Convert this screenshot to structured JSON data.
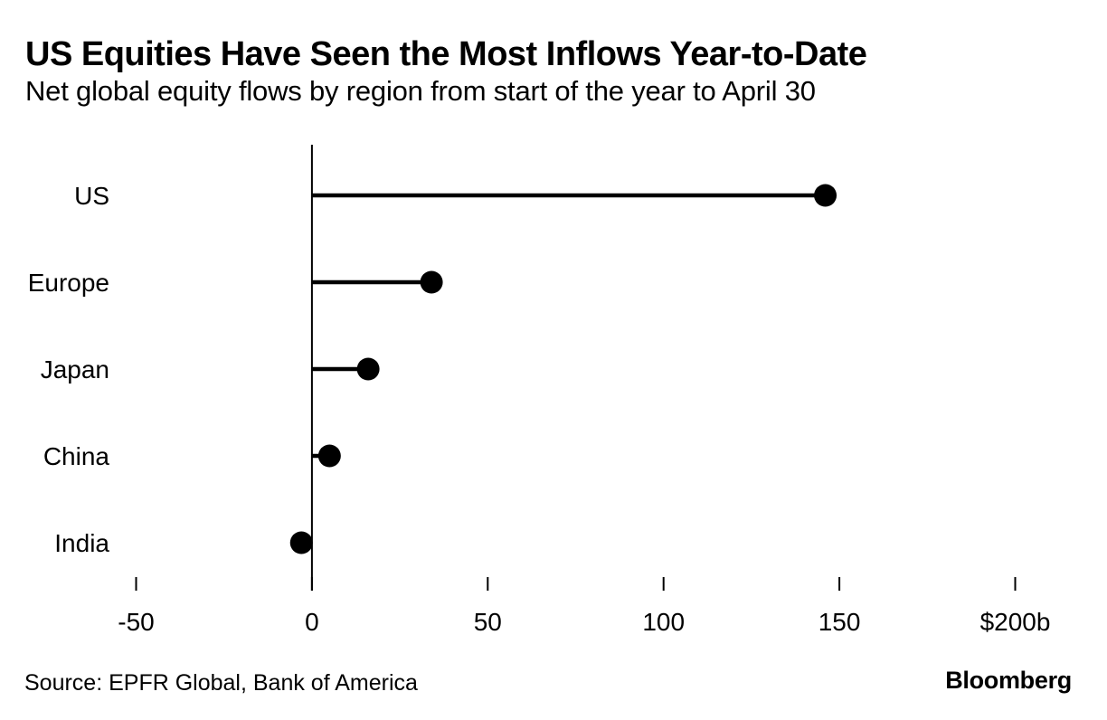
{
  "header": {
    "title": "US Equities Have Seen the Most Inflows Year-to-Date",
    "subtitle": "Net global equity flows by region from start of the year to April 30"
  },
  "chart_data": {
    "type": "bar",
    "variant": "horizontal-lollipop",
    "title": "US Equities Have Seen the Most Inflows Year-to-Date",
    "subtitle": "Net global equity flows by region from start of the year to April 30",
    "categories": [
      "US",
      "Europe",
      "Japan",
      "China",
      "India"
    ],
    "values": [
      146,
      34,
      16,
      5,
      -3
    ],
    "unit": "USD billions",
    "xlim": [
      -50,
      200
    ],
    "xticks": [
      -50,
      0,
      50,
      100,
      150,
      200
    ],
    "xtick_labels": [
      "-50",
      "0",
      "50",
      "100",
      "150",
      "$200b"
    ],
    "grid": false,
    "legend": "none",
    "marker_color": "#000000",
    "background_color": "#ffffff"
  },
  "footer": {
    "source": "Source: EPFR Global, Bank of America",
    "brand": "Bloomberg"
  }
}
